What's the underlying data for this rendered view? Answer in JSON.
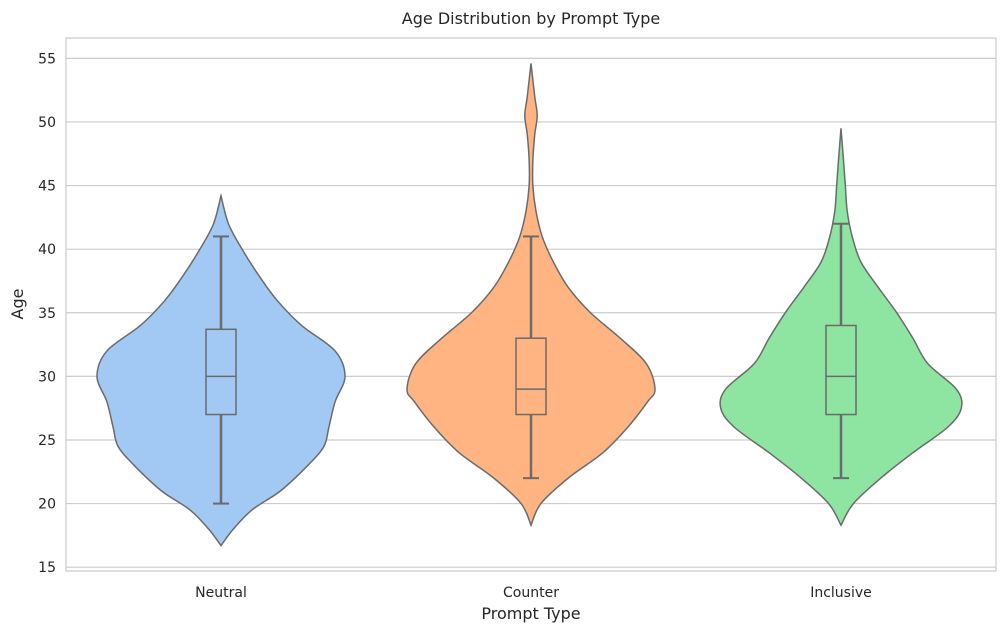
{
  "chart_data": {
    "type": "violin",
    "title": "Age Distribution by Prompt Type",
    "xlabel": "Prompt Type",
    "ylabel": "Age",
    "ylim": [
      14.7,
      56.6
    ],
    "yticks": [
      15,
      20,
      25,
      30,
      35,
      40,
      45,
      50,
      55
    ],
    "grid": true,
    "legend": "none",
    "categories": [
      "Neutral",
      "Counter",
      "Inclusive"
    ],
    "colors": [
      "#a1c9f4",
      "#ffb482",
      "#8de5a1"
    ],
    "series": [
      {
        "category": "Neutral",
        "box": {
          "whisker_low": 20,
          "q1": 27,
          "median": 30,
          "q3": 33.7,
          "whisker_high": 41
        },
        "density_range": [
          16.7,
          44.2
        ],
        "density": [
          [
            16.7,
            0.0
          ],
          [
            18,
            0.1
          ],
          [
            19.5,
            0.25
          ],
          [
            21,
            0.48
          ],
          [
            23,
            0.7
          ],
          [
            24.5,
            0.83
          ],
          [
            26,
            0.87
          ],
          [
            28,
            0.92
          ],
          [
            30,
            1.0
          ],
          [
            32,
            0.92
          ],
          [
            34,
            0.65
          ],
          [
            36,
            0.45
          ],
          [
            38,
            0.3
          ],
          [
            40,
            0.17
          ],
          [
            42,
            0.06
          ],
          [
            44.2,
            0.0
          ]
        ]
      },
      {
        "category": "Counter",
        "box": {
          "whisker_low": 22,
          "q1": 27,
          "median": 29,
          "q3": 33,
          "whisker_high": 41
        },
        "density_range": [
          18.3,
          54.6
        ],
        "density": [
          [
            18.3,
            0.0
          ],
          [
            20,
            0.08
          ],
          [
            22,
            0.3
          ],
          [
            24,
            0.58
          ],
          [
            26,
            0.78
          ],
          [
            28,
            0.94
          ],
          [
            29,
            1.0
          ],
          [
            31,
            0.93
          ],
          [
            33,
            0.72
          ],
          [
            35,
            0.48
          ],
          [
            37,
            0.3
          ],
          [
            39,
            0.18
          ],
          [
            41,
            0.09
          ],
          [
            43,
            0.04
          ],
          [
            45,
            0.015
          ],
          [
            47,
            0.015
          ],
          [
            49,
            0.03
          ],
          [
            50.5,
            0.05
          ],
          [
            52,
            0.03
          ],
          [
            54.6,
            0.0
          ]
        ]
      },
      {
        "category": "Inclusive",
        "box": {
          "whisker_low": 22,
          "q1": 27,
          "median": 30,
          "q3": 34,
          "whisker_high": 42
        },
        "density_range": [
          18.3,
          49.5
        ],
        "density": [
          [
            18.3,
            0.0
          ],
          [
            20,
            0.1
          ],
          [
            22,
            0.32
          ],
          [
            24,
            0.58
          ],
          [
            26,
            0.86
          ],
          [
            27.5,
            0.97
          ],
          [
            29,
            0.93
          ],
          [
            31,
            0.7
          ],
          [
            33,
            0.58
          ],
          [
            35,
            0.45
          ],
          [
            37,
            0.3
          ],
          [
            39,
            0.16
          ],
          [
            41,
            0.09
          ],
          [
            43,
            0.05
          ],
          [
            45,
            0.035
          ],
          [
            47,
            0.02
          ],
          [
            49.5,
            0.0
          ]
        ]
      }
    ]
  }
}
